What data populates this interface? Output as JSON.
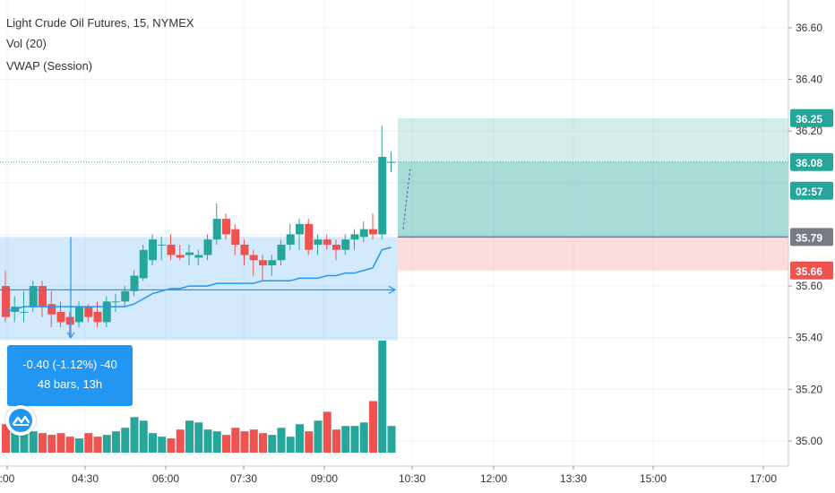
{
  "legend": {
    "symbol_line": "Light Crude Oil Futures, 15, NYMEX",
    "vol_line": "Vol (20)",
    "vwap_line": "VWAP (Session)"
  },
  "measure": {
    "line1": "-0.40 (-1.12%) -40",
    "line2": "48 bars, 13h"
  },
  "price_tags": [
    {
      "label": "36.25",
      "value": 36.25,
      "bg": "#26a69a",
      "fg": "#ffffff"
    },
    {
      "label": "36.08",
      "value": 36.08,
      "bg": "#26a69a",
      "fg": "#ffffff"
    },
    {
      "label": "02:57",
      "value": 35.99,
      "bg": "#26a69a",
      "fg": "#ffffff"
    },
    {
      "label": "35.79",
      "value": 35.79,
      "bg": "#787b86",
      "fg": "#ffffff"
    },
    {
      "label": "35.66",
      "value": 35.66,
      "bg": "#ef5350",
      "fg": "#ffffff"
    }
  ],
  "colors": {
    "up": "#26a69a",
    "down": "#ef5350",
    "vwap": "#2196f3",
    "grid": "#f0f3fa",
    "axis_text": "#333333",
    "measure_bg": "#2196f3"
  },
  "chart_data": {
    "type": "candlestick",
    "x_ticks": [
      ":00",
      "04:30",
      "06:00",
      "07:30",
      "09:00",
      "10:30",
      "12:00",
      "13:30",
      "15:00",
      "17:00"
    ],
    "y_ticks": [
      35.0,
      35.2,
      35.4,
      35.6,
      36.2,
      36.4,
      36.6
    ],
    "y_tick_labels": [
      "35.00",
      "35.20",
      "35.40",
      "35.60",
      "36.20",
      "36.40",
      "36.60"
    ],
    "ylim": [
      34.92,
      36.69
    ],
    "candles": [
      {
        "o": 35.6,
        "h": 35.66,
        "l": 35.46,
        "c": 35.48
      },
      {
        "o": 35.5,
        "h": 35.56,
        "l": 35.46,
        "c": 35.52
      },
      {
        "o": 35.5,
        "h": 35.58,
        "l": 35.46,
        "c": 35.5
      },
      {
        "o": 35.52,
        "h": 35.62,
        "l": 35.5,
        "c": 35.6
      },
      {
        "o": 35.6,
        "h": 35.62,
        "l": 35.48,
        "c": 35.52
      },
      {
        "o": 35.53,
        "h": 35.58,
        "l": 35.44,
        "c": 35.49
      },
      {
        "o": 35.5,
        "h": 35.54,
        "l": 35.44,
        "c": 35.46
      },
      {
        "o": 35.48,
        "h": 35.5,
        "l": 35.4,
        "c": 35.45
      },
      {
        "o": 35.46,
        "h": 35.54,
        "l": 35.44,
        "c": 35.52
      },
      {
        "o": 35.52,
        "h": 35.53,
        "l": 35.46,
        "c": 35.48
      },
      {
        "o": 35.5,
        "h": 35.54,
        "l": 35.44,
        "c": 35.46
      },
      {
        "o": 35.46,
        "h": 35.56,
        "l": 35.44,
        "c": 35.54
      },
      {
        "o": 35.54,
        "h": 35.57,
        "l": 35.5,
        "c": 35.54
      },
      {
        "o": 35.54,
        "h": 35.6,
        "l": 35.52,
        "c": 35.58
      },
      {
        "o": 35.58,
        "h": 35.66,
        "l": 35.56,
        "c": 35.64
      },
      {
        "o": 35.63,
        "h": 35.76,
        "l": 35.62,
        "c": 35.74
      },
      {
        "o": 35.7,
        "h": 35.8,
        "l": 35.68,
        "c": 35.78
      },
      {
        "o": 35.76,
        "h": 35.79,
        "l": 35.7,
        "c": 35.76
      },
      {
        "o": 35.76,
        "h": 35.8,
        "l": 35.7,
        "c": 35.72
      },
      {
        "o": 35.72,
        "h": 35.76,
        "l": 35.7,
        "c": 35.71
      },
      {
        "o": 35.72,
        "h": 35.76,
        "l": 35.68,
        "c": 35.73
      },
      {
        "o": 35.71,
        "h": 35.74,
        "l": 35.68,
        "c": 35.72
      },
      {
        "o": 35.72,
        "h": 35.8,
        "l": 35.7,
        "c": 35.78
      },
      {
        "o": 35.78,
        "h": 35.92,
        "l": 35.76,
        "c": 35.86
      },
      {
        "o": 35.86,
        "h": 35.88,
        "l": 35.78,
        "c": 35.8
      },
      {
        "o": 35.82,
        "h": 35.84,
        "l": 35.72,
        "c": 35.76
      },
      {
        "o": 35.76,
        "h": 35.78,
        "l": 35.68,
        "c": 35.72
      },
      {
        "o": 35.72,
        "h": 35.74,
        "l": 35.64,
        "c": 35.7
      },
      {
        "o": 35.7,
        "h": 35.72,
        "l": 35.62,
        "c": 35.68
      },
      {
        "o": 35.68,
        "h": 35.72,
        "l": 35.64,
        "c": 35.7
      },
      {
        "o": 35.7,
        "h": 35.78,
        "l": 35.68,
        "c": 35.76
      },
      {
        "o": 35.76,
        "h": 35.84,
        "l": 35.74,
        "c": 35.8
      },
      {
        "o": 35.8,
        "h": 35.86,
        "l": 35.74,
        "c": 35.84
      },
      {
        "o": 35.84,
        "h": 35.86,
        "l": 35.72,
        "c": 35.74
      },
      {
        "o": 35.76,
        "h": 35.8,
        "l": 35.72,
        "c": 35.78
      },
      {
        "o": 35.78,
        "h": 35.8,
        "l": 35.74,
        "c": 35.76
      },
      {
        "o": 35.76,
        "h": 35.78,
        "l": 35.7,
        "c": 35.74
      },
      {
        "o": 35.74,
        "h": 35.8,
        "l": 35.72,
        "c": 35.78
      },
      {
        "o": 35.78,
        "h": 35.82,
        "l": 35.74,
        "c": 35.8
      },
      {
        "o": 35.79,
        "h": 35.85,
        "l": 35.77,
        "c": 35.82
      },
      {
        "o": 35.82,
        "h": 35.88,
        "l": 35.78,
        "c": 35.8
      },
      {
        "o": 35.8,
        "h": 36.22,
        "l": 35.78,
        "c": 36.1
      },
      {
        "o": 36.08,
        "h": 36.12,
        "l": 36.04,
        "c": 36.08
      }
    ],
    "volume": [
      16,
      13,
      15,
      12,
      11,
      10,
      11,
      9,
      8,
      11,
      9,
      10,
      12,
      14,
      20,
      18,
      11,
      9,
      8,
      13,
      18,
      17,
      13,
      12,
      10,
      14,
      12,
      13,
      11,
      10,
      14,
      9,
      16,
      12,
      18,
      23,
      13,
      15,
      15,
      17,
      29,
      63,
      15
    ],
    "vwap": [
      35.5,
      35.51,
      35.52,
      35.52,
      35.52,
      35.52,
      35.52,
      35.52,
      35.52,
      35.52,
      35.52,
      35.52,
      35.52,
      35.52,
      35.53,
      35.55,
      35.57,
      35.58,
      35.59,
      35.59,
      35.6,
      35.6,
      35.6,
      35.61,
      35.61,
      35.61,
      35.61,
      35.61,
      35.62,
      35.62,
      35.62,
      35.62,
      35.63,
      35.63,
      35.63,
      35.64,
      35.64,
      35.65,
      35.65,
      35.66,
      35.67,
      35.74,
      35.75
    ],
    "long_position": {
      "entry": 35.79,
      "target": 36.25,
      "stop": 35.66
    },
    "measure_range": {
      "high": 35.79,
      "low": 35.39,
      "from_bar": 0,
      "to_bar": 43
    }
  }
}
